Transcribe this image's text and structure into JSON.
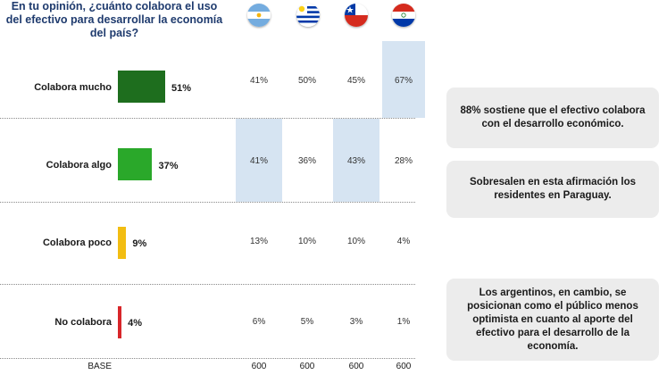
{
  "question": "En tu opinión, ¿cuánto colabora el uso del efectivo para desarrollar la economía del país?",
  "countries": [
    {
      "name": "Argentina",
      "icon": "argentina-flag-icon"
    },
    {
      "name": "Uruguay",
      "icon": "uruguay-flag-icon"
    },
    {
      "name": "Chile",
      "icon": "chile-flag-icon"
    },
    {
      "name": "Paraguay",
      "icon": "paraguay-flag-icon"
    }
  ],
  "chart_data": {
    "type": "bar",
    "orientation": "horizontal",
    "categories": [
      "Colabora mucho",
      "Colabora algo",
      "Colabora poco",
      "No colabora"
    ],
    "values": [
      51,
      37,
      9,
      4
    ],
    "value_labels": [
      "51%",
      "37%",
      "9%",
      "4%"
    ],
    "colors": [
      "#1e6e1e",
      "#2aa82a",
      "#f2bd12",
      "#d8262a"
    ],
    "xlim": [
      0,
      100
    ]
  },
  "table": {
    "rows": [
      [
        "41%",
        "50%",
        "45%",
        "67%"
      ],
      [
        "41%",
        "36%",
        "43%",
        "28%"
      ],
      [
        "13%",
        "10%",
        "10%",
        "4%"
      ],
      [
        "6%",
        "5%",
        "3%",
        "1%"
      ]
    ],
    "highlighted": [
      [
        0,
        3
      ],
      [
        1,
        0
      ],
      [
        1,
        2
      ]
    ],
    "base_label": "BASE",
    "base_values": [
      "600",
      "600",
      "600",
      "600"
    ]
  },
  "notes": [
    "88% sostiene que el efectivo colabora con el desarrollo económico.",
    "Sobresalen en esta afirmación los residentes en Paraguay.",
    "Los argentinos, en cambio, se posicionan como el público menos optimista en cuanto al aporte del efectivo para el desarrollo de la economía."
  ]
}
